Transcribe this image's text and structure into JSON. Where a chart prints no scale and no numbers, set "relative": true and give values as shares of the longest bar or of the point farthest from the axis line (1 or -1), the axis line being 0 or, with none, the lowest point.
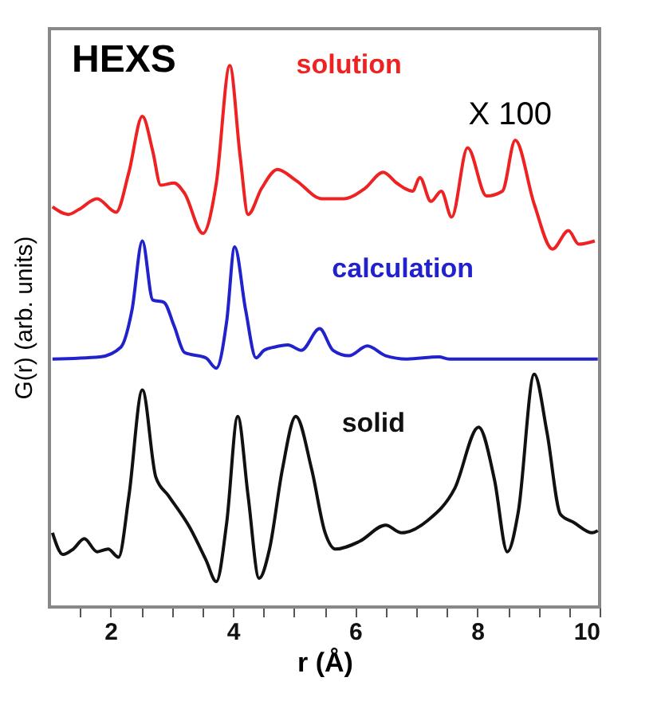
{
  "chart_data": {
    "type": "line",
    "title": "HEXS",
    "xlabel": "r (Å)",
    "ylabel": "G(r) (arb. units)",
    "relative": true,
    "xlim": [
      1,
      10
    ],
    "xticks": [
      {
        "value": 1.5,
        "label": null
      },
      2,
      {
        "value": 2.5,
        "label": null
      },
      {
        "value": 3,
        "label": null
      },
      {
        "value": 3.5,
        "label": null
      },
      4,
      {
        "value": 4.5,
        "label": null
      },
      {
        "value": 5,
        "label": null
      },
      {
        "value": 5.5,
        "label": null
      },
      6,
      {
        "value": 6.5,
        "label": null
      },
      {
        "value": 7,
        "label": null
      },
      {
        "value": 7.5,
        "label": null
      },
      8,
      {
        "value": 8.5,
        "label": null
      },
      {
        "value": 9,
        "label": null
      },
      {
        "value": 9.5,
        "label": null
      },
      10
    ],
    "grid": false,
    "legend": false,
    "marker": "none",
    "line_style": "solid",
    "annotations": [
      "X 100"
    ],
    "series": [
      {
        "name": "solution",
        "color": "#ee2222",
        "x": [
          1.05,
          1.31,
          1.48,
          1.78,
          2.09,
          2.3,
          2.52,
          2.69,
          2.82,
          3.04,
          3.21,
          3.51,
          3.73,
          3.95,
          4.12,
          4.25,
          4.47,
          4.73,
          5.03,
          5.46,
          5.81,
          6.16,
          6.46,
          6.68,
          6.94,
          7.06,
          7.24,
          7.41,
          7.58,
          7.84,
          8.15,
          8.41,
          8.62,
          8.93,
          9.23,
          9.49,
          9.66,
          9.92
        ],
        "values": [
          0.739,
          0.725,
          0.734,
          0.754,
          0.729,
          0.803,
          0.906,
          0.842,
          0.779,
          0.783,
          0.764,
          0.69,
          0.783,
          1.0,
          0.832,
          0.725,
          0.773,
          0.808,
          0.788,
          0.754,
          0.754,
          0.773,
          0.803,
          0.783,
          0.768,
          0.793,
          0.749,
          0.768,
          0.72,
          0.848,
          0.759,
          0.768,
          0.862,
          0.744,
          0.661,
          0.695,
          0.67,
          0.676
        ]
      },
      {
        "name": "calculation",
        "color": "#2222cc",
        "x": [
          1.05,
          1.83,
          2.17,
          2.35,
          2.52,
          2.69,
          2.87,
          3.04,
          3.21,
          3.56,
          3.73,
          3.9,
          4.03,
          4.21,
          4.38,
          4.51,
          4.68,
          4.9,
          5.12,
          5.42,
          5.64,
          5.9,
          6.2,
          6.5,
          6.85,
          7.37,
          7.54,
          9.97
        ],
        "values": [
          0.458,
          0.462,
          0.48,
          0.548,
          0.676,
          0.567,
          0.563,
          0.519,
          0.47,
          0.46,
          0.441,
          0.528,
          0.665,
          0.548,
          0.46,
          0.474,
          0.48,
          0.484,
          0.474,
          0.514,
          0.474,
          0.464,
          0.482,
          0.464,
          0.458,
          0.462,
          0.458,
          0.458
        ]
      },
      {
        "name": "solid",
        "color": "#111111",
        "x": [
          1.05,
          1.22,
          1.39,
          1.57,
          1.78,
          1.96,
          2.13,
          2.3,
          2.52,
          2.74,
          2.95,
          3.3,
          3.56,
          3.73,
          3.9,
          4.08,
          4.25,
          4.43,
          4.6,
          4.81,
          5.03,
          5.29,
          5.51,
          5.68,
          6.07,
          6.5,
          6.76,
          7.19,
          7.63,
          8.02,
          8.28,
          8.49,
          8.67,
          8.93,
          9.14,
          9.36,
          9.58,
          9.88,
          9.97
        ],
        "values": [
          0.137,
          0.097,
          0.107,
          0.126,
          0.102,
          0.107,
          0.092,
          0.205,
          0.401,
          0.24,
          0.205,
          0.146,
          0.087,
          0.047,
          0.156,
          0.352,
          0.205,
          0.053,
          0.107,
          0.254,
          0.352,
          0.254,
          0.137,
          0.107,
          0.121,
          0.151,
          0.137,
          0.16,
          0.219,
          0.332,
          0.235,
          0.102,
          0.176,
          0.43,
          0.322,
          0.171,
          0.156,
          0.137,
          0.141
        ]
      }
    ]
  }
}
